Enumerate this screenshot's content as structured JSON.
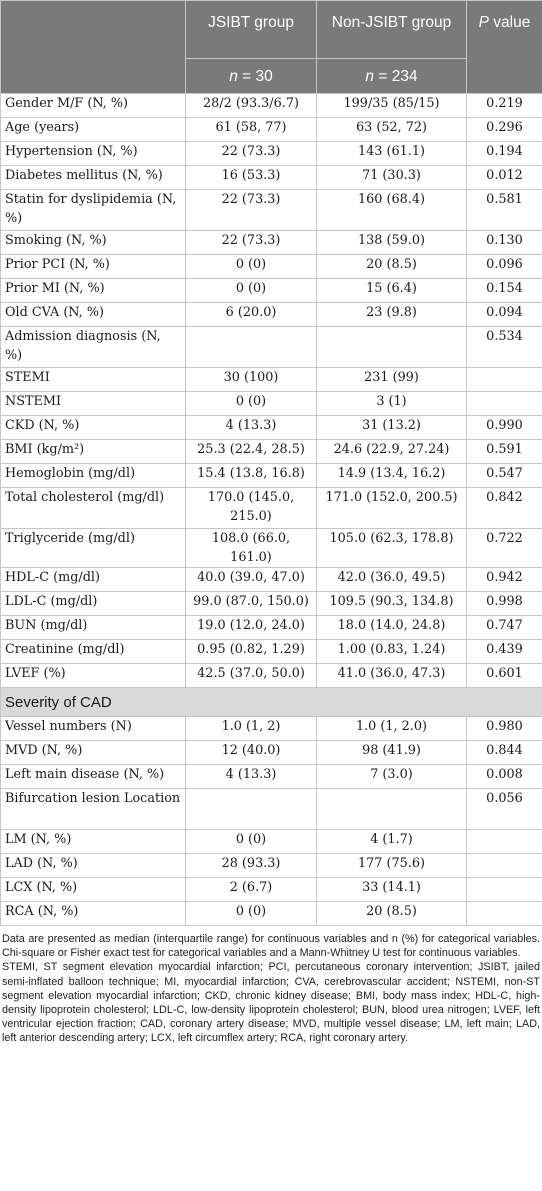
{
  "header": {
    "col_jsibt": "JSIBT group",
    "col_non": "Non-JSIBT group",
    "col_p_italic": "P",
    "col_p_rest": " value",
    "n_jsibt_italic": "n",
    "n_jsibt_rest": " = 30",
    "n_non_italic": "n",
    "n_non_rest": " = 234"
  },
  "rows1": [
    {
      "label": "Gender M/F (N, %)",
      "jsibt": "28/2 (93.3/6.7)",
      "non": "199/35 (85/15)",
      "p": "0.219"
    },
    {
      "label": "Age (years)",
      "jsibt": "61 (58, 77)",
      "non": "63 (52, 72)",
      "p": "0.296"
    },
    {
      "label": "Hypertension (N, %)",
      "jsibt": "22 (73.3)",
      "non": "143 (61.1)",
      "p": "0.194"
    },
    {
      "label": "Diabetes mellitus (N, %)",
      "jsibt": "16 (53.3)",
      "non": "71 (30.3)",
      "p": "0.012"
    },
    {
      "label": "Statin for dyslipidemia (N, %)",
      "jsibt": "22 (73.3)",
      "non": "160 (68.4)",
      "p": "0.581",
      "tall": true
    },
    {
      "label": "Smoking (N, %)",
      "jsibt": "22 (73.3)",
      "non": "138 (59.0)",
      "p": "0.130"
    },
    {
      "label": "Prior PCI (N, %)",
      "jsibt": "0 (0)",
      "non": "20 (8.5)",
      "p": "0.096"
    },
    {
      "label": "Prior MI (N, %)",
      "jsibt": "0 (0)",
      "non": "15 (6.4)",
      "p": "0.154"
    },
    {
      "label": "Old CVA (N, %)",
      "jsibt": "6 (20.0)",
      "non": "23 (9.8)",
      "p": "0.094"
    },
    {
      "label": "Admission diagnosis (N, %)",
      "jsibt": "",
      "non": "",
      "p": "0.534",
      "tall": true
    },
    {
      "label": "STEMI",
      "jsibt": "30 (100)",
      "non": "231 (99)",
      "p": "",
      "indent": true
    },
    {
      "label": "NSTEMI",
      "jsibt": "0 (0)",
      "non": "3 (1)",
      "p": "",
      "indent": true
    },
    {
      "label": "CKD (N, %)",
      "jsibt": "4 (13.3)",
      "non": "31 (13.2)",
      "p": "0.990"
    },
    {
      "label": "BMI (kg/m²)",
      "jsibt": "25.3 (22.4, 28.5)",
      "non": "24.6 (22.9, 27.24)",
      "p": "0.591"
    },
    {
      "label": "Hemoglobin (mg/dl)",
      "jsibt": "15.4 (13.8, 16.8)",
      "non": "14.9 (13.4, 16.2)",
      "p": "0.547"
    },
    {
      "label": "Total cholesterol (mg/dl)",
      "jsibt": "170.0 (145.0, 215.0)",
      "non": "171.0 (152.0, 200.5)",
      "p": "0.842",
      "tall": true
    },
    {
      "label": "Triglyceride (mg/dl)",
      "jsibt": "108.0 (66.0, 161.0)",
      "non": "105.0 (62.3, 178.8)",
      "p": "0.722"
    },
    {
      "label": "HDL-C (mg/dl)",
      "jsibt": "40.0 (39.0, 47.0)",
      "non": "42.0 (36.0, 49.5)",
      "p": "0.942"
    },
    {
      "label": "LDL-C (mg/dl)",
      "jsibt": "99.0 (87.0, 150.0)",
      "non": "109.5 (90.3, 134.8)",
      "p": "0.998"
    },
    {
      "label": "BUN (mg/dl)",
      "jsibt": "19.0 (12.0, 24.0)",
      "non": "18.0 (14.0, 24.8)",
      "p": "0.747"
    },
    {
      "label": "Creatinine (mg/dl)",
      "jsibt": "0.95 (0.82, 1.29)",
      "non": "1.00 (0.83, 1.24)",
      "p": "0.439"
    },
    {
      "label": "LVEF (%)",
      "jsibt": "42.5 (37.0, 50.0)",
      "non": "41.0 (36.0, 47.3)",
      "p": "0.601"
    }
  ],
  "section_title": "Severity of CAD",
  "rows2": [
    {
      "label": "Vessel numbers (N)",
      "jsibt": "1.0 (1, 2)",
      "non": "1.0 (1, 2.0)",
      "p": "0.980"
    },
    {
      "label": "MVD (N, %)",
      "jsibt": "12 (40.0)",
      "non": "98 (41.9)",
      "p": "0.844"
    },
    {
      "label": "Left main disease (N, %)",
      "jsibt": "4 (13.3)",
      "non": "7 (3.0)",
      "p": "0.008"
    },
    {
      "label": "Bifurcation lesion Location",
      "jsibt": "",
      "non": "",
      "p": "0.056",
      "tall": true
    },
    {
      "label": "LM (N, %)",
      "jsibt": "0 (0)",
      "non": "4 (1.7)",
      "p": "",
      "indent": true
    },
    {
      "label": "LAD (N, %)",
      "jsibt": "28 (93.3)",
      "non": "177 (75.6)",
      "p": "",
      "indent": true
    },
    {
      "label": "LCX (N, %)",
      "jsibt": "2 (6.7)",
      "non": "33 (14.1)",
      "p": "",
      "indent": true
    },
    {
      "label": "RCA (N, %)",
      "jsibt": "0 (0)",
      "non": "20 (8.5)",
      "p": "",
      "indent": true
    }
  ],
  "footnote1": "Data are presented as median (interquartile range) for continuous variables and n (%) for categorical variables. Chi-square or Fisher exact test for categorical variables and a Mann-Whitney U test for continuous variables.",
  "footnote2": "STEMI, ST segment elevation myocardial infarction; PCI, percutaneous coronary intervention; JSIBT, jailed semi-inflated balloon technique; MI, myocardial infarction; CVA, cerebrovascular accident; NSTEMI, non-ST segment elevation myocardial infarction; CKD, chronic kidney disease; BMI, body mass index; HDL-C, high-density lipoprotein cholesterol; LDL-C, low-density lipoprotein cholesterol; BUN, blood urea nitrogen; LVEF, left ventricular ejection fraction; CAD, coronary artery disease; MVD, multiple vessel disease; LM, left main; LAD, left anterior descending artery; LCX, left circumflex artery; RCA, right coronary artery."
}
